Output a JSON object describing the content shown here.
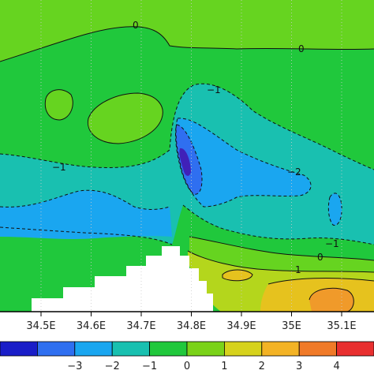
{
  "chart_data": {
    "type": "heatmap",
    "title": "",
    "xlabel": "",
    "ylabel": "",
    "x_tick_labels": [
      "34.5E",
      "34.6E",
      "34.7E",
      "34.8E",
      "34.9E",
      "35E",
      "35.1E"
    ],
    "colorbar": {
      "levels": [
        -4,
        -3,
        -2,
        -1,
        0,
        1,
        2,
        3,
        4
      ],
      "tick_labels": [
        "−3",
        "−2",
        "−1",
        "0",
        "1",
        "2",
        "3",
        "4"
      ],
      "colors": [
        "#1a1ec8",
        "#2f6ff0",
        "#1aa6f0",
        "#19c0b0",
        "#20c83c",
        "#7ad219",
        "#d6d21c",
        "#f3b325",
        "#f07a28",
        "#e82f2f"
      ]
    },
    "contour_labels": [
      "0",
      "0",
      "−1",
      "−1",
      "−2",
      "−1",
      "0",
      "1"
    ],
    "grid": true,
    "masked_region": "land (white)"
  }
}
